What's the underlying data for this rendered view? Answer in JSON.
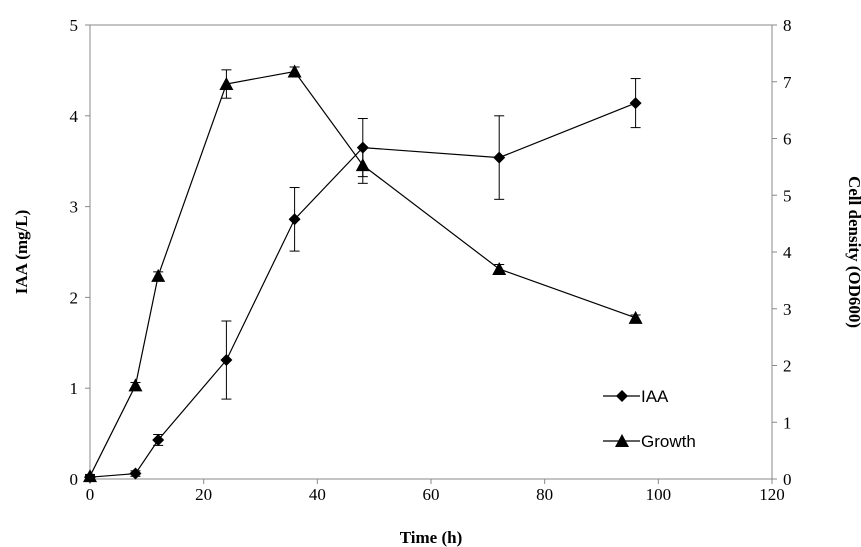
{
  "chart_data": {
    "type": "line",
    "xlabel": "Time (h)",
    "ylabel_left": "IAA (mg/L)",
    "ylabel_right": "Cell density (OD600)",
    "xlim": [
      0,
      120
    ],
    "ylim_left": [
      0,
      5
    ],
    "ylim_right": [
      0,
      8
    ],
    "x_ticks": [
      0,
      20,
      40,
      60,
      80,
      100,
      120
    ],
    "y_left_ticks": [
      0,
      1,
      2,
      3,
      4,
      5
    ],
    "y_right_ticks": [
      0,
      1,
      2,
      3,
      4,
      5,
      6,
      7,
      8
    ],
    "grid": false,
    "legend_position": "bottom-right",
    "series": [
      {
        "name": "IAA",
        "axis": "left",
        "marker": "diamond",
        "x": [
          0,
          8,
          12,
          24,
          36,
          48,
          72,
          96
        ],
        "y": [
          0.02,
          0.06,
          0.43,
          1.31,
          2.86,
          3.65,
          3.54,
          4.14
        ],
        "err": [
          0.02,
          0.03,
          0.06,
          0.43,
          0.35,
          0.32,
          0.46,
          0.27
        ]
      },
      {
        "name": "Growth",
        "axis": "right",
        "marker": "triangle",
        "x": [
          0,
          8,
          12,
          24,
          36,
          48,
          72,
          96
        ],
        "y": [
          0.05,
          1.65,
          3.58,
          6.96,
          7.18,
          5.53,
          3.7,
          2.84
        ],
        "err": [
          0.03,
          0.05,
          0.07,
          0.25,
          0.08,
          0.32,
          0.08,
          0.05
        ]
      }
    ]
  }
}
